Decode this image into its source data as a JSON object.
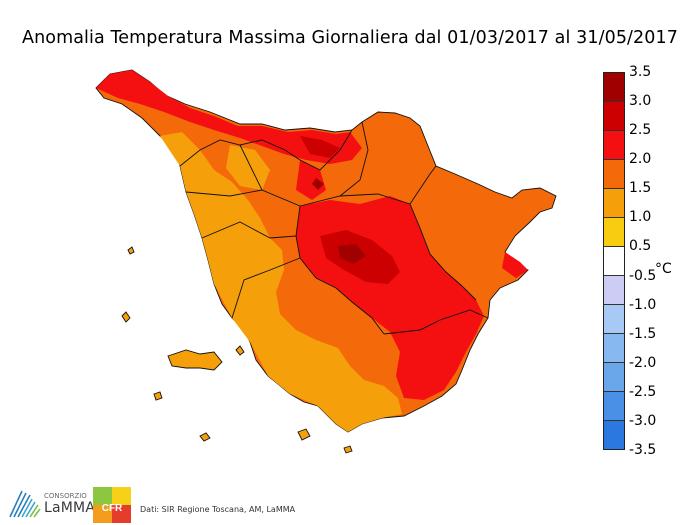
{
  "title": "Anomalia Temperatura Massima Giornaliera dal 01/03/2017 al 31/05/2017",
  "colorbar": {
    "unit": "°C",
    "ticks": [
      "3.5",
      "3.0",
      "2.5",
      "2.0",
      "1.5",
      "1.0",
      "0.5",
      "-0.5",
      "-1.0",
      "-1.5",
      "-2.0",
      "-2.5",
      "-3.0",
      "-3.5"
    ],
    "colors": [
      "#a00000",
      "#cc0000",
      "#f41010",
      "#f46a0a",
      "#f5a00a",
      "#f8cc10",
      "#ffffff",
      "#ccccf5",
      "#a8c8f5",
      "#88b8f0",
      "#6aa6ea",
      "#4a90e6",
      "#2a78e0"
    ]
  },
  "logos": {
    "lamma_small": "CONSORZIO",
    "lamma_name": "LaMMA",
    "cfr_label": "CFR"
  },
  "source_text": "Dati: SIR Regione Toscana, AM, LaMMA"
}
